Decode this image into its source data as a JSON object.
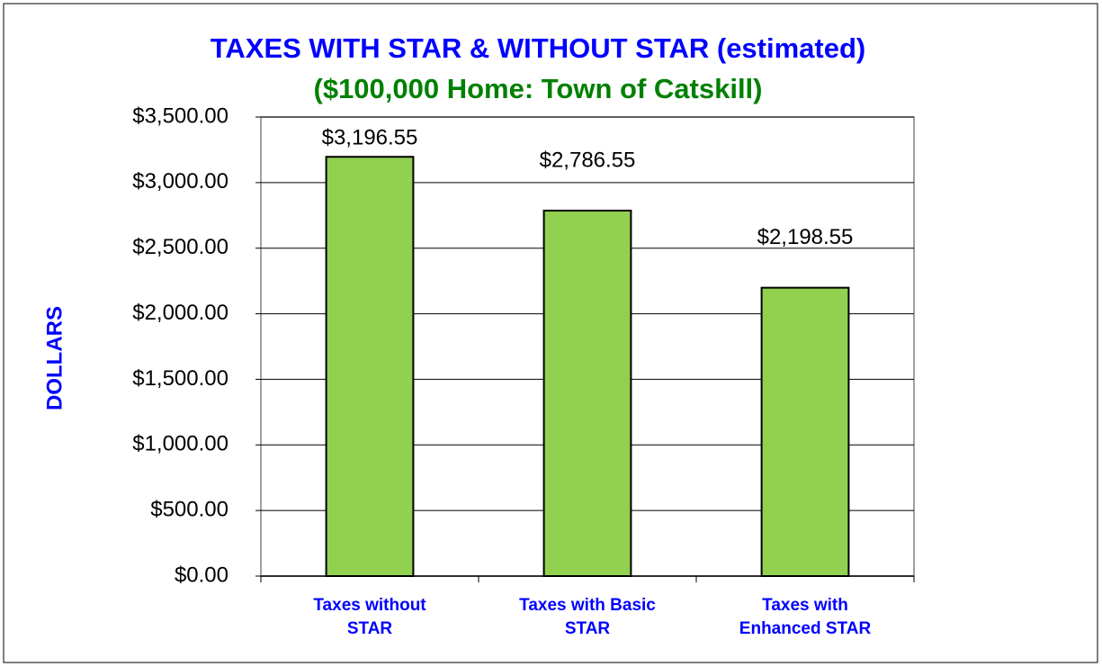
{
  "chart_data": {
    "type": "bar",
    "title": "TAXES WITH STAR & WITHOUT STAR (estimated)",
    "subtitle": "($100,000 Home: Town of Catskill)",
    "y_label": "DOLLARS",
    "categories": [
      [
        "Taxes without",
        "STAR"
      ],
      [
        "Taxes with Basic",
        "STAR"
      ],
      [
        "Taxes with",
        "Enhanced STAR"
      ]
    ],
    "values": [
      3196.55,
      2786.55,
      2198.55
    ],
    "value_labels": [
      "$3,196.55",
      "$2,786.55",
      "$2,198.55"
    ],
    "color": "#92d050",
    "ylim": [
      0,
      3500
    ],
    "yticks": [
      {
        "value": 0,
        "label": "$0.00"
      },
      {
        "value": 500,
        "label": "$500.00"
      },
      {
        "value": 1000,
        "label": "$1,000.00"
      },
      {
        "value": 1500,
        "label": "$1,500.00"
      },
      {
        "value": 2000,
        "label": "$2,000.00"
      },
      {
        "value": 2500,
        "label": "$2,500.00"
      },
      {
        "value": 3000,
        "label": "$3,000.00"
      },
      {
        "value": 3500,
        "label": "$3,500.00"
      }
    ],
    "grid": true
  }
}
